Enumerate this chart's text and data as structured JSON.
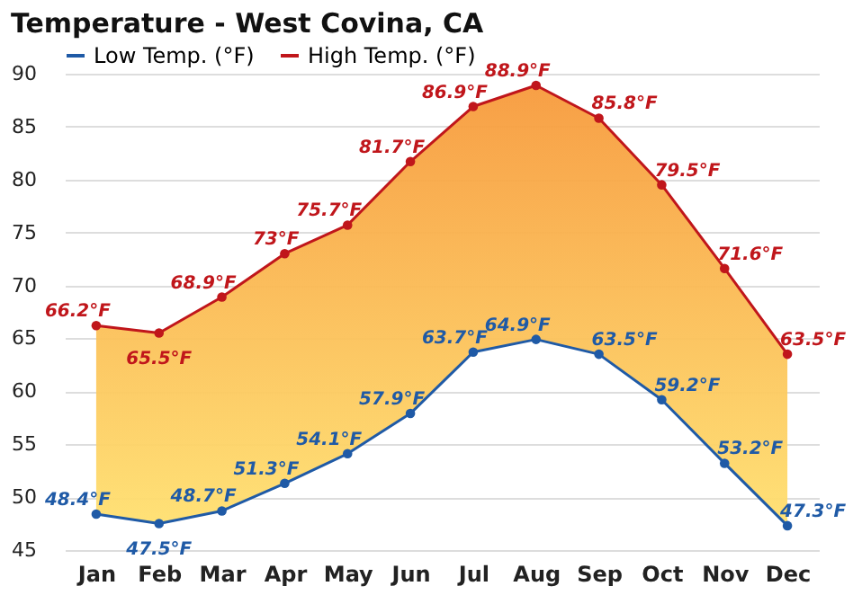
{
  "chart_data": {
    "type": "line",
    "title": "Temperature - West Covina, CA",
    "categories": [
      "Jan",
      "Feb",
      "Mar",
      "Apr",
      "May",
      "Jun",
      "Jul",
      "Aug",
      "Sep",
      "Oct",
      "Nov",
      "Dec"
    ],
    "series": [
      {
        "name": "Low Temp. (°F)",
        "color": "#1f5aa6",
        "values": [
          48.4,
          47.5,
          48.7,
          51.3,
          54.1,
          57.9,
          63.7,
          64.9,
          63.5,
          59.2,
          53.2,
          47.3
        ],
        "value_labels": [
          "48.4°F",
          "47.5°F",
          "48.7°F",
          "51.3°F",
          "54.1°F",
          "57.9°F",
          "63.7°F",
          "64.9°F",
          "63.5°F",
          "59.2°F",
          "53.2°F",
          "47.3°F"
        ]
      },
      {
        "name": "High Temp. (°F)",
        "color": "#c0161b",
        "values": [
          66.2,
          65.5,
          68.9,
          73,
          75.7,
          81.7,
          86.9,
          88.9,
          85.8,
          79.5,
          71.6,
          63.5
        ],
        "value_labels": [
          "66.2°F",
          "65.5°F",
          "68.9°F",
          "73°F",
          "75.7°F",
          "81.7°F",
          "86.9°F",
          "88.9°F",
          "85.8°F",
          "79.5°F",
          "71.6°F",
          "63.5°F"
        ],
        "lower": [
          48.4,
          47.5,
          48.7,
          51.3,
          54.1,
          57.9,
          63.7,
          64.9,
          63.5,
          59.2,
          53.2,
          47.3
        ],
        "upper": [
          66.2,
          65.5,
          68.9,
          73,
          75.7,
          81.7,
          86.9,
          88.9,
          85.8,
          79.5,
          71.6,
          63.5
        ]
      }
    ],
    "ylim": [
      45,
      90
    ],
    "yticks": [
      45,
      50,
      55,
      60,
      65,
      70,
      75,
      80,
      85,
      90
    ],
    "grid": "y",
    "legend": "top left",
    "marker": "circle",
    "line_style": "solid"
  }
}
